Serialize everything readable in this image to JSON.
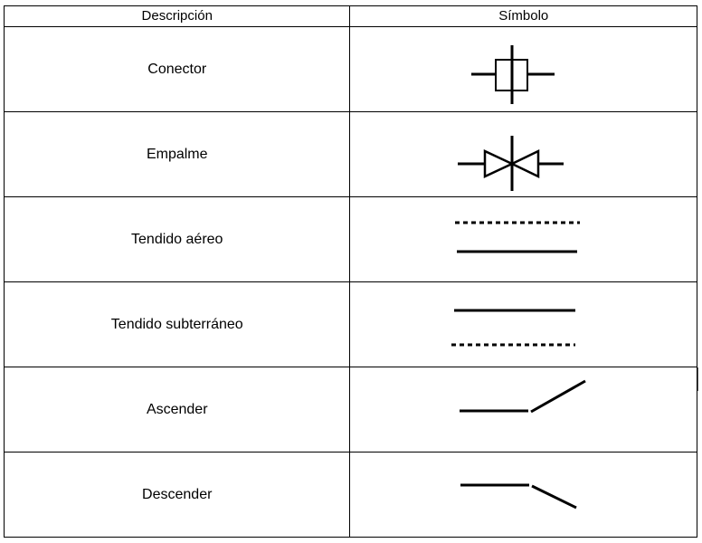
{
  "table": {
    "headers": {
      "description": "Descripción",
      "symbol": "Símbolo"
    },
    "rows": [
      {
        "description": "Conector",
        "symbol_icon": "connector-symbol-icon"
      },
      {
        "description": "Empalme",
        "symbol_icon": "splice-symbol-icon"
      },
      {
        "description": "Tendido aéreo",
        "symbol_icon": "aerial-line-symbol-icon"
      },
      {
        "description": "Tendido subterráneo",
        "symbol_icon": "underground-line-symbol-icon"
      },
      {
        "description": "Ascender",
        "symbol_icon": "ascend-symbol-icon"
      },
      {
        "description": "Descender",
        "symbol_icon": "descend-symbol-icon"
      }
    ]
  },
  "colors": {
    "line": "#000000",
    "border": "#000000",
    "background": "#ffffff"
  }
}
